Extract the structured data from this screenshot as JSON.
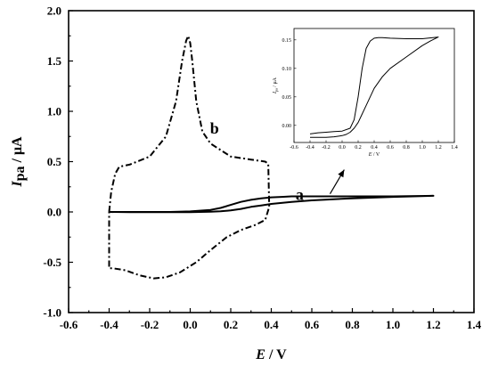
{
  "chart_data": [
    {
      "type": "line",
      "title": "",
      "xlabel_var": "E",
      "xlabel_unit": " / V",
      "ylabel_var": "I",
      "ylabel_sub": "pa",
      "ylabel_unit": " / μA",
      "xlim": [
        -0.6,
        1.4
      ],
      "ylim": [
        -1.0,
        2.0
      ],
      "xticks": [
        -0.6,
        -0.4,
        -0.2,
        0.0,
        0.2,
        0.4,
        0.6,
        0.8,
        1.0,
        1.2,
        1.4
      ],
      "yticks": [
        -1.0,
        -0.5,
        0.0,
        0.5,
        1.0,
        1.5,
        2.0
      ],
      "xtick_labels": [
        "-0.6",
        "-0.4",
        "-0.2",
        "0.0",
        "0.2",
        "0.4",
        "0.6",
        "0.8",
        "1.0",
        "1.2",
        "1.4"
      ],
      "ytick_labels": [
        "-1.0",
        "-0.5",
        "0.0",
        "0.5",
        "1.0",
        "1.5",
        "2.0"
      ],
      "grid": false,
      "series": [
        {
          "name": "a",
          "style": "solid",
          "x": [
            -0.4,
            -0.3,
            -0.2,
            -0.1,
            0.0,
            0.1,
            0.15,
            0.2,
            0.25,
            0.3,
            0.35,
            0.4,
            0.45,
            0.5,
            0.6,
            0.8,
            1.0,
            1.2,
            1.1,
            1.0,
            0.8,
            0.6,
            0.5,
            0.4,
            0.35,
            0.3,
            0.25,
            0.2,
            0.15,
            0.1,
            0.05,
            0.0,
            -0.1,
            -0.2,
            -0.3,
            -0.4
          ],
          "y": [
            0.0,
            0.0,
            0.0,
            0.0,
            0.005,
            0.02,
            0.04,
            0.07,
            0.1,
            0.12,
            0.135,
            0.145,
            0.15,
            0.155,
            0.155,
            0.155,
            0.155,
            0.16,
            0.155,
            0.15,
            0.135,
            0.115,
            0.1,
            0.08,
            0.065,
            0.05,
            0.03,
            0.015,
            0.006,
            0.002,
            0.0,
            -0.002,
            -0.003,
            -0.003,
            -0.003,
            0.0
          ]
        },
        {
          "name": "b",
          "style": "dash-dot",
          "x": [
            -0.4,
            -0.39,
            -0.37,
            -0.35,
            -0.3,
            -0.2,
            -0.12,
            -0.07,
            -0.04,
            -0.02,
            -0.01,
            0.0,
            0.01,
            0.03,
            0.06,
            0.1,
            0.2,
            0.3,
            0.37,
            0.385,
            0.39,
            0.37,
            0.32,
            0.25,
            0.18,
            0.1,
            0.03,
            -0.05,
            -0.12,
            -0.18,
            -0.25,
            -0.32,
            -0.38,
            -0.4,
            -0.4,
            -0.4
          ],
          "y": [
            0.0,
            0.2,
            0.38,
            0.45,
            0.47,
            0.55,
            0.75,
            1.1,
            1.5,
            1.7,
            1.75,
            1.68,
            1.5,
            1.1,
            0.8,
            0.68,
            0.55,
            0.52,
            0.5,
            0.48,
            0.05,
            -0.08,
            -0.13,
            -0.18,
            -0.25,
            -0.38,
            -0.5,
            -0.6,
            -0.65,
            -0.66,
            -0.63,
            -0.58,
            -0.56,
            -0.56,
            -0.3,
            0.0
          ]
        }
      ],
      "labels": [
        {
          "text": "a",
          "x": 0.54,
          "y": 0.12
        },
        {
          "text": "b",
          "x": 0.12,
          "y": 0.78
        }
      ]
    },
    {
      "type": "line",
      "title": "",
      "role": "inset",
      "xlabel_var": "E",
      "xlabel_unit": " / V",
      "ylabel_var": "I",
      "ylabel_sub": "pa",
      "ylabel_unit": " / μA",
      "xlim": [
        -0.6,
        1.4
      ],
      "ylim": [
        -0.03,
        0.17
      ],
      "xticks": [
        -0.6,
        -0.4,
        -0.2,
        0.0,
        0.2,
        0.4,
        0.6,
        0.8,
        1.0,
        1.2,
        1.4
      ],
      "yticks": [
        0.0,
        0.05,
        0.1,
        0.15
      ],
      "xtick_labels": [
        "-0.6",
        "-0.4",
        "-0.2",
        "0.0",
        "0.2",
        "0.4",
        "0.6",
        "0.8",
        "1.0",
        "1.2",
        "1.4"
      ],
      "ytick_labels": [
        "0.00",
        "0.05",
        "0.10",
        "0.15"
      ],
      "grid": false,
      "series": [
        {
          "name": "a",
          "style": "solid",
          "x": [
            -0.4,
            -0.3,
            -0.2,
            -0.1,
            0.0,
            0.1,
            0.15,
            0.2,
            0.25,
            0.3,
            0.35,
            0.4,
            0.45,
            0.5,
            0.6,
            0.8,
            1.0,
            1.2,
            1.1,
            1.0,
            0.8,
            0.6,
            0.5,
            0.4,
            0.35,
            0.3,
            0.25,
            0.2,
            0.15,
            0.1,
            0.05,
            0.0,
            -0.1,
            -0.2,
            -0.3,
            -0.4
          ],
          "y": [
            -0.015,
            -0.013,
            -0.012,
            -0.011,
            -0.01,
            -0.005,
            0.01,
            0.05,
            0.1,
            0.135,
            0.148,
            0.153,
            0.154,
            0.154,
            0.153,
            0.152,
            0.152,
            0.155,
            0.148,
            0.14,
            0.12,
            0.1,
            0.085,
            0.065,
            0.05,
            0.035,
            0.02,
            0.005,
            -0.005,
            -0.012,
            -0.016,
            -0.018,
            -0.02,
            -0.021,
            -0.021,
            -0.021
          ]
        }
      ]
    }
  ]
}
